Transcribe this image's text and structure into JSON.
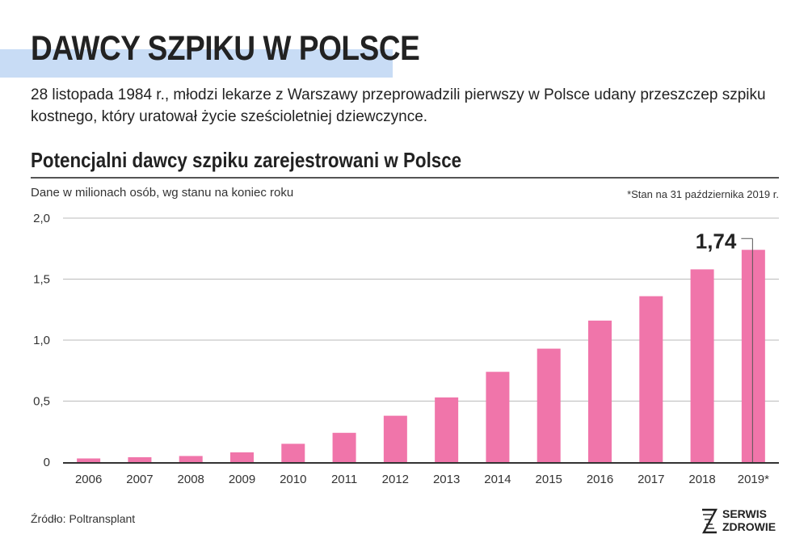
{
  "header": {
    "title": "DAWCY SZPIKU W POLSCE",
    "intro": "28 listopada 1984 r., młodzi lekarze z Warszawy przeprowadzili pierwszy w Polsce udany przeszczep szpiku kostnego, który uratował życie sześcioletniej dziewczynce."
  },
  "chart_data": {
    "type": "bar",
    "title": "Potencjalni dawcy szpiku zarejestrowani w Polsce",
    "subtitle": "Dane w milionach osób, wg stanu na koniec roku",
    "note": "*Stan na 31 października 2019 r.",
    "categories": [
      "2006",
      "2007",
      "2008",
      "2009",
      "2010",
      "2011",
      "2012",
      "2013",
      "2014",
      "2015",
      "2016",
      "2017",
      "2018",
      "2019*"
    ],
    "values": [
      0.03,
      0.04,
      0.05,
      0.08,
      0.15,
      0.24,
      0.38,
      0.53,
      0.74,
      0.93,
      1.16,
      1.36,
      1.58,
      1.74
    ],
    "y_ticks": [
      "0",
      "0,5",
      "1,0",
      "1,5",
      "2,0"
    ],
    "ylim": [
      0,
      2
    ],
    "grid": "horizontal",
    "highlight_label": "1,74",
    "bar_color": "#f075aa"
  },
  "footer": {
    "source": "Źródło: Poltransplant",
    "logo_line1": "SERWIS",
    "logo_line2": "ZDROWIE"
  }
}
